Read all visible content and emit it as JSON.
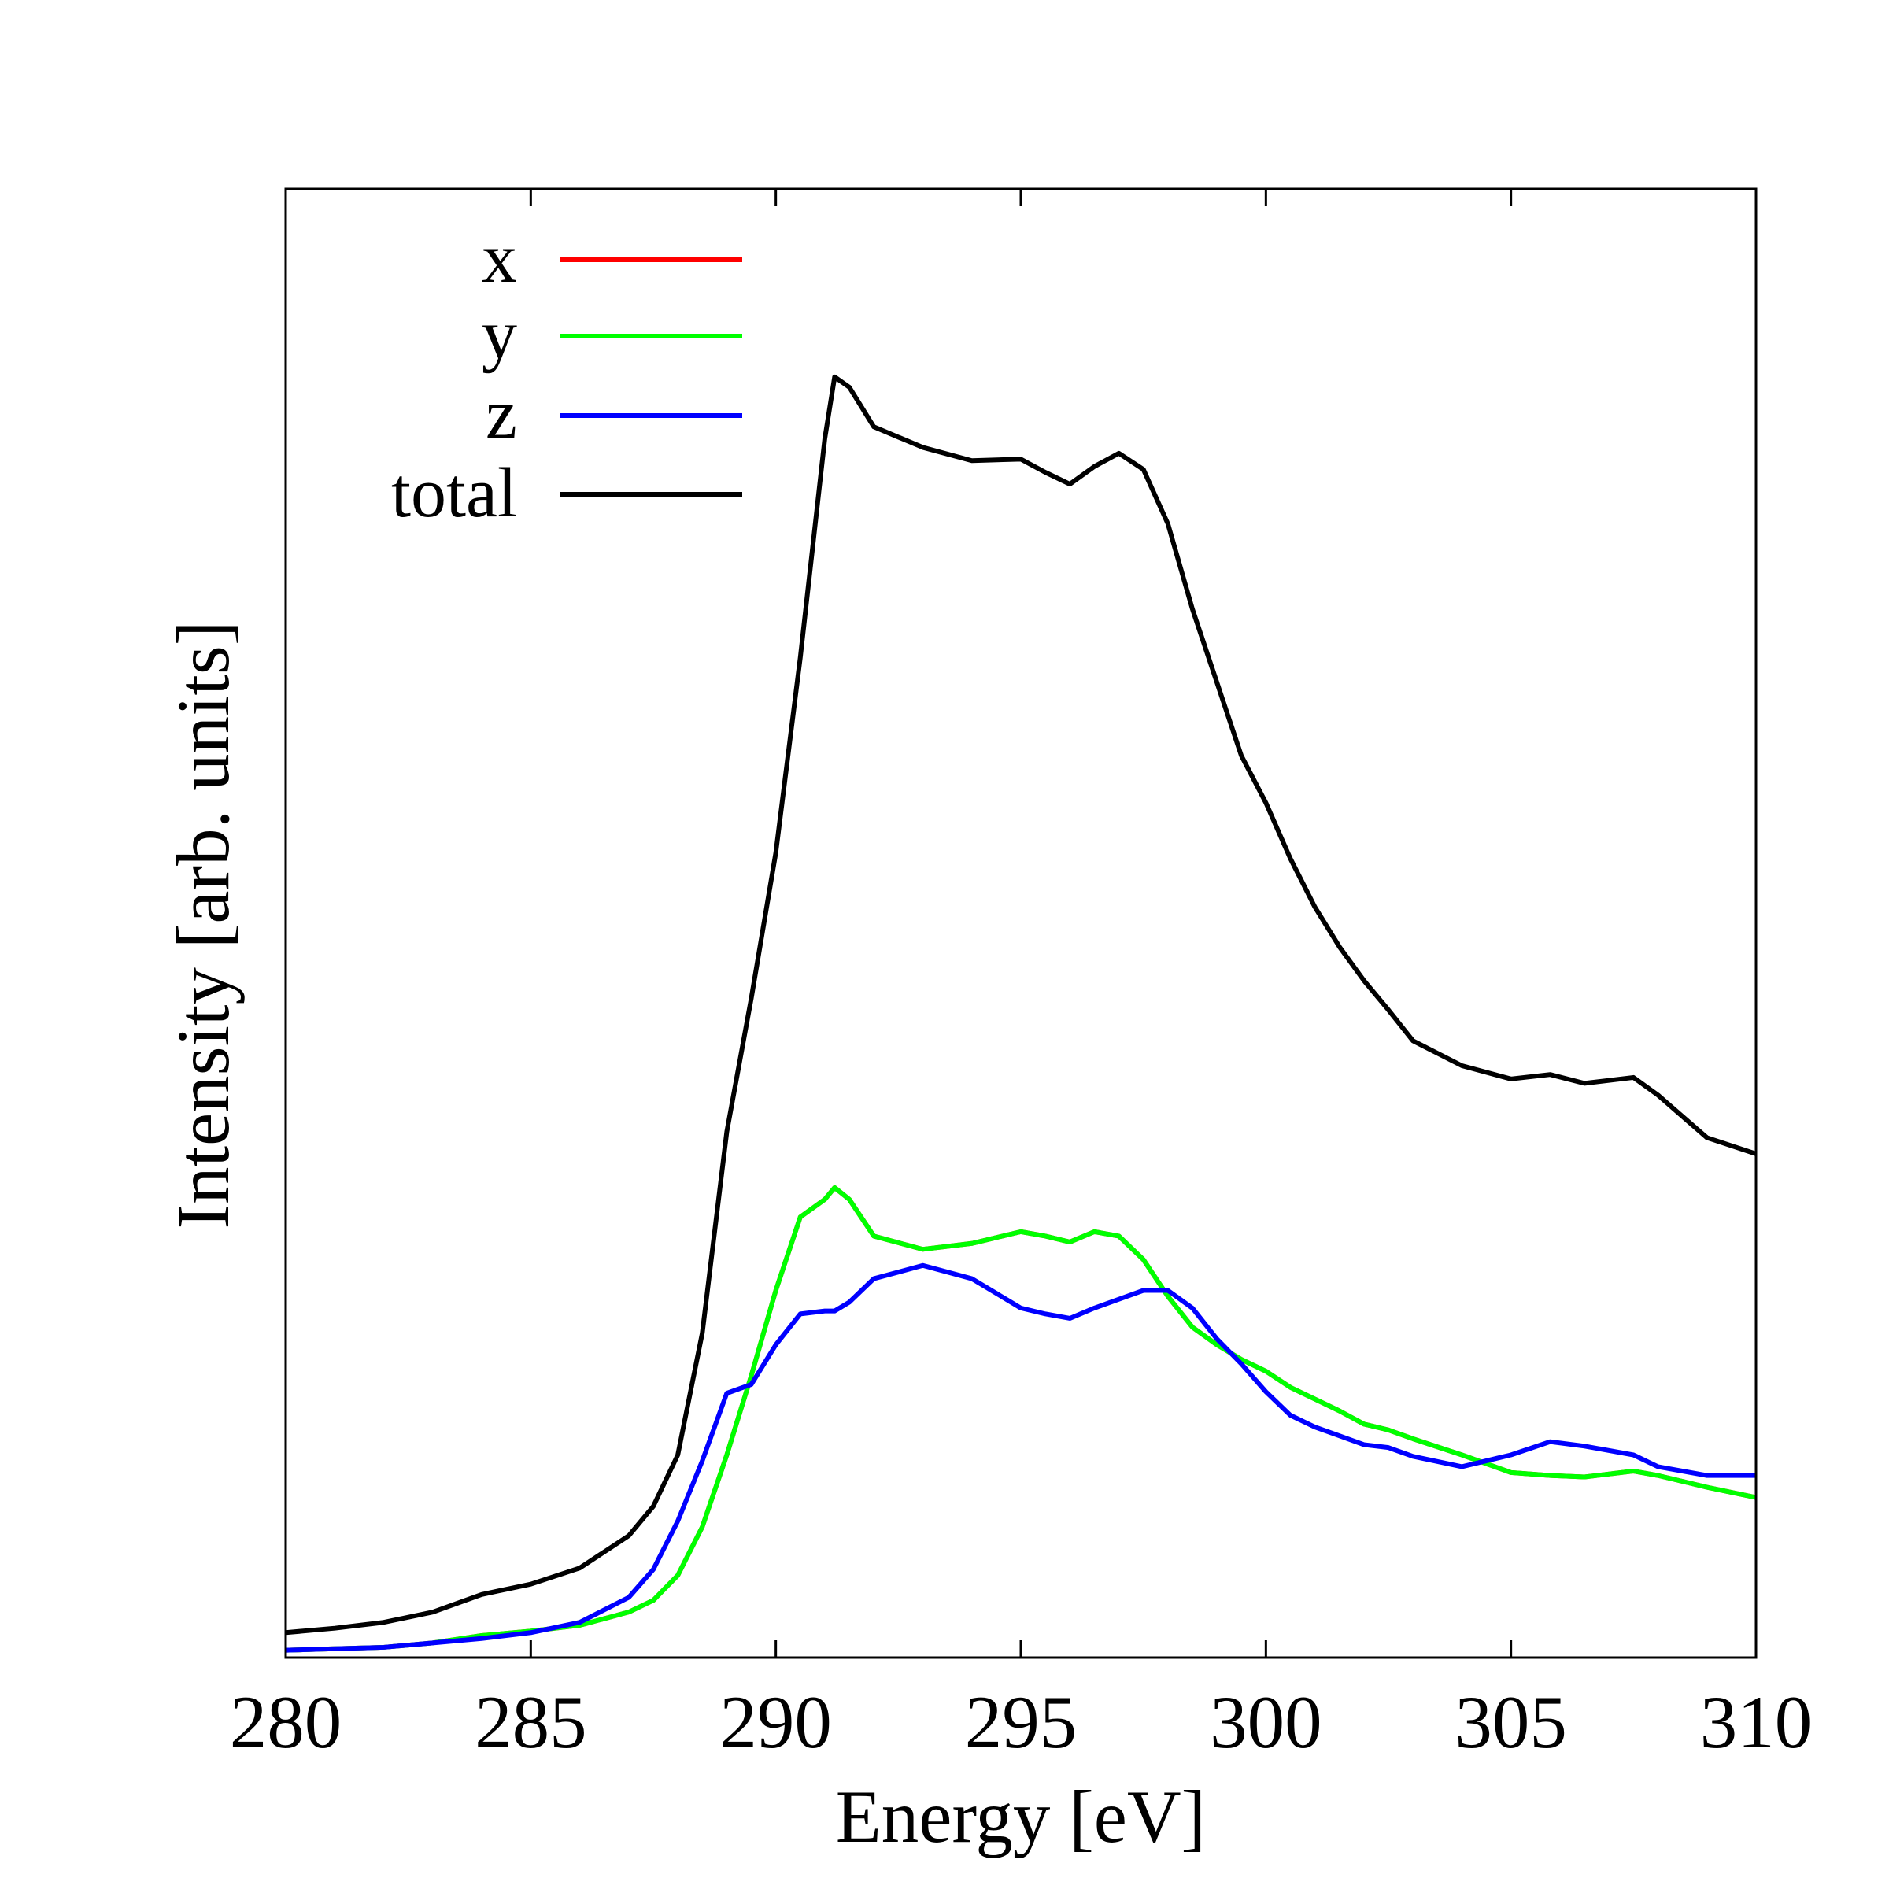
{
  "chart_data": {
    "type": "line",
    "xlabel": "Energy [eV]",
    "ylabel": "Intensity [arb. units]",
    "xlim": [
      280,
      310
    ],
    "xticks": [
      280,
      285,
      290,
      295,
      300,
      305,
      310
    ],
    "ylim": [
      0,
      100
    ],
    "legend": "upper left",
    "x": [
      280,
      281,
      282,
      283,
      284,
      285,
      286,
      287,
      287.5,
      288,
      288.5,
      289,
      289.5,
      290,
      290.5,
      291,
      291.2,
      291.5,
      292,
      293,
      294,
      295,
      295.5,
      296,
      296.5,
      297,
      297.5,
      298,
      298.5,
      299,
      299.5,
      300,
      300.5,
      301,
      301.5,
      302,
      302.5,
      303,
      304,
      305,
      305.8,
      306.5,
      307.5,
      308,
      309,
      310
    ],
    "series": [
      {
        "name": "x",
        "color": "#ff0000",
        "values": [
          0.5,
          0.6,
          0.7,
          1.0,
          1.5,
          1.8,
          2.2,
          3.1,
          3.9,
          5.6,
          8.9,
          13.8,
          19.2,
          25.0,
          30.0,
          31.2,
          32.0,
          31.2,
          28.7,
          27.8,
          28.2,
          29.0,
          28.7,
          28.3,
          29.0,
          28.7,
          27.1,
          24.6,
          22.5,
          21.3,
          20.3,
          19.5,
          18.4,
          17.6,
          16.8,
          15.9,
          15.5,
          14.9,
          13.8,
          12.6,
          12.4,
          12.3,
          12.7,
          12.4,
          11.6,
          10.9
        ]
      },
      {
        "name": "y",
        "color": "#00ff00",
        "values": [
          0.5,
          0.6,
          0.7,
          1.0,
          1.5,
          1.8,
          2.2,
          3.1,
          3.9,
          5.6,
          8.9,
          13.8,
          19.2,
          25.0,
          30.0,
          31.2,
          32.0,
          31.2,
          28.7,
          27.8,
          28.2,
          29.0,
          28.7,
          28.3,
          29.0,
          28.7,
          27.1,
          24.6,
          22.5,
          21.3,
          20.3,
          19.5,
          18.4,
          17.6,
          16.8,
          15.9,
          15.5,
          14.9,
          13.8,
          12.6,
          12.4,
          12.3,
          12.7,
          12.4,
          11.6,
          10.9
        ]
      },
      {
        "name": "z",
        "color": "#0000ff",
        "values": [
          0.5,
          0.6,
          0.7,
          1.0,
          1.3,
          1.7,
          2.4,
          4.1,
          6.0,
          9.3,
          13.4,
          18.0,
          18.6,
          21.3,
          23.4,
          23.6,
          23.6,
          24.2,
          25.8,
          26.7,
          25.8,
          23.8,
          23.4,
          23.1,
          23.8,
          24.4,
          25.0,
          25.0,
          23.8,
          21.7,
          20.0,
          18.1,
          16.5,
          15.7,
          15.1,
          14.5,
          14.3,
          13.7,
          13.0,
          13.8,
          14.7,
          14.4,
          13.8,
          13.0,
          12.4,
          12.4
        ]
      },
      {
        "name": "total",
        "color": "#000000",
        "values": [
          1.7,
          2.0,
          2.4,
          3.1,
          4.3,
          5.0,
          6.1,
          8.3,
          10.3,
          13.8,
          22.1,
          35.8,
          44.9,
          54.8,
          68.1,
          83.0,
          87.2,
          86.5,
          83.8,
          82.4,
          81.5,
          81.6,
          80.7,
          79.9,
          81.1,
          82.0,
          80.9,
          77.2,
          71.4,
          66.4,
          61.4,
          58.2,
          54.4,
          51.1,
          48.4,
          46.1,
          44.1,
          42.0,
          40.3,
          39.4,
          39.7,
          39.1,
          39.5,
          38.3,
          35.4,
          34.3
        ]
      }
    ]
  }
}
